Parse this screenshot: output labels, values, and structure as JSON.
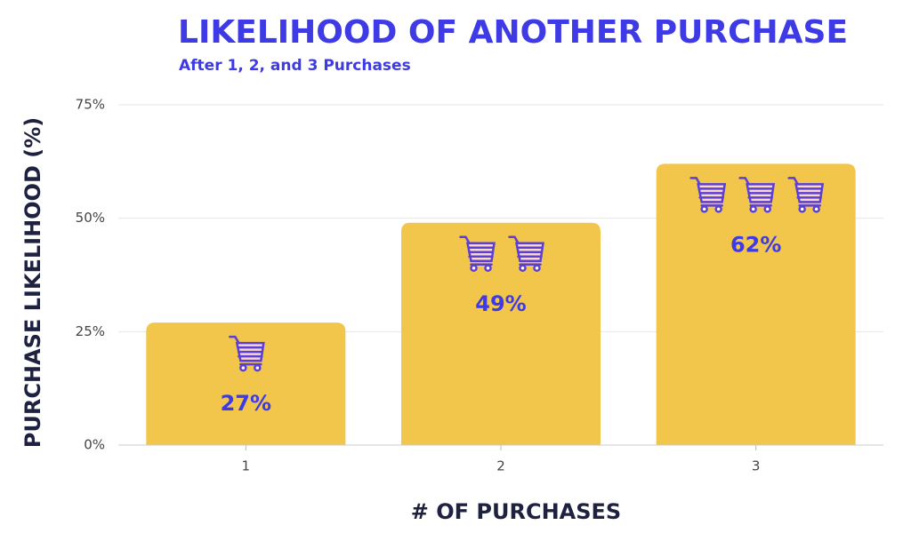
{
  "chart_data": {
    "type": "bar",
    "title": "LIKELIHOOD OF ANOTHER PURCHASE",
    "subtitle": "After 1, 2, and 3 Purchases",
    "x_label": "# OF PURCHASES",
    "y_label": "PURCHASE LIKELIHOOD (%)",
    "categories": [
      "1",
      "2",
      "3"
    ],
    "values": [
      27,
      49,
      62
    ],
    "value_labels": [
      "27%",
      "49%",
      "62%"
    ],
    "color": "#f2c54b",
    "ylim": [
      0,
      75
    ],
    "yticks": [
      {
        "value": 0,
        "label": "0%"
      },
      {
        "value": 25,
        "label": "25%"
      },
      {
        "value": 50,
        "label": "50%"
      },
      {
        "value": 75,
        "label": "75%"
      }
    ],
    "grid": true
  }
}
